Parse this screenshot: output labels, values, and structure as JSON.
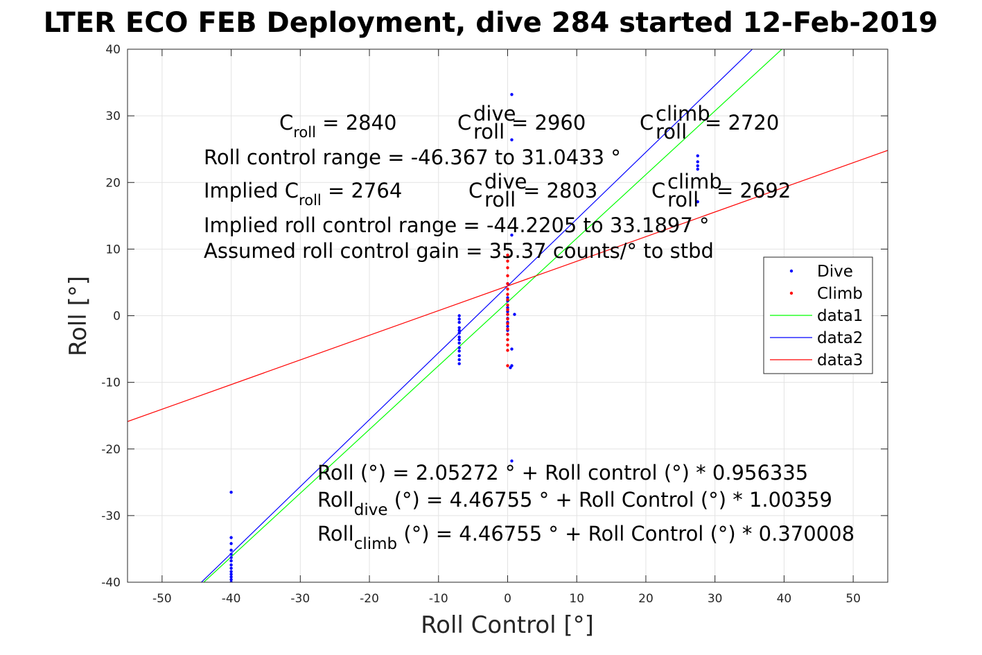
{
  "chart_data": {
    "type": "scatter",
    "title": "LTER ECO FEB Deployment, dive 284 started 12-Feb-2019",
    "xlabel": "Roll Control [°]",
    "ylabel": "Roll [°]",
    "xlim": [
      -55,
      55
    ],
    "ylim": [
      -40,
      40
    ],
    "xticks": [
      -50,
      -40,
      -30,
      -20,
      -10,
      0,
      10,
      20,
      30,
      40,
      50
    ],
    "yticks": [
      -40,
      -30,
      -20,
      -10,
      0,
      10,
      20,
      30,
      40
    ],
    "grid": true,
    "legend_position": "right",
    "series": [
      {
        "name": "Dive",
        "kind": "points",
        "color": "#0000ff",
        "points": [
          [
            -40,
            -26.5
          ],
          [
            -40,
            -33.3
          ],
          [
            -40,
            -34.2
          ],
          [
            -40,
            -35.2
          ],
          [
            -40,
            -35.8
          ],
          [
            -40,
            -36.3
          ],
          [
            -40,
            -36.8
          ],
          [
            -40,
            -37.4
          ],
          [
            -40,
            -37.9
          ],
          [
            -40,
            -38.4
          ],
          [
            -40,
            -38.8
          ],
          [
            -40,
            -39.2
          ],
          [
            -40,
            -39.6
          ],
          [
            -40,
            -40
          ],
          [
            -7,
            0
          ],
          [
            -7,
            -0.5
          ],
          [
            -7,
            -1
          ],
          [
            -7,
            -1.8
          ],
          [
            -7,
            -2.2
          ],
          [
            -7,
            -2.6
          ],
          [
            -7,
            -3.2
          ],
          [
            -7,
            -3.6
          ],
          [
            -7,
            -4.1
          ],
          [
            -7,
            -4.8
          ],
          [
            -7,
            -5.3
          ],
          [
            -7,
            -6
          ],
          [
            -7,
            -6.6
          ],
          [
            -7,
            -7.2
          ],
          [
            0,
            4.8
          ],
          [
            0,
            2.7
          ],
          [
            0,
            2.2
          ],
          [
            0,
            1.2
          ],
          [
            0,
            0.6
          ],
          [
            0,
            0.2
          ],
          [
            0,
            -0.4
          ],
          [
            0,
            -1
          ],
          [
            0,
            -1.6
          ],
          [
            0,
            -2.2
          ],
          [
            0,
            -2.8
          ],
          [
            0.6,
            33.2
          ],
          [
            0.6,
            26.4
          ],
          [
            0.6,
            12.1
          ],
          [
            0.6,
            -5
          ],
          [
            0.4,
            -7.8
          ],
          [
            0.6,
            -7.5
          ],
          [
            0.6,
            -21.8
          ],
          [
            1,
            0.2
          ],
          [
            27.5,
            24
          ],
          [
            27.5,
            23.1
          ],
          [
            27.5,
            22.5
          ],
          [
            27.5,
            22
          ],
          [
            27.5,
            17.1
          ]
        ]
      },
      {
        "name": "Climb",
        "kind": "points",
        "color": "#ff0000",
        "points": [
          [
            0,
            9.1
          ],
          [
            0,
            8.2
          ],
          [
            0,
            7.2
          ],
          [
            0,
            6
          ],
          [
            0,
            4.8
          ],
          [
            0,
            4
          ],
          [
            0,
            3.2
          ],
          [
            0,
            2.4
          ],
          [
            0,
            1.6
          ],
          [
            0,
            0.9
          ],
          [
            0,
            0.2
          ],
          [
            0,
            -0.5
          ],
          [
            0,
            -1.2
          ],
          [
            0,
            -2
          ],
          [
            0,
            -2.8
          ],
          [
            0,
            -3.6
          ],
          [
            0,
            -4.4
          ],
          [
            0,
            -5.2
          ],
          [
            0,
            -7.5
          ]
        ]
      },
      {
        "name": "data1",
        "kind": "line",
        "color": "#00ff00",
        "intercept": 2.05272,
        "slope": 0.956335
      },
      {
        "name": "data2",
        "kind": "line",
        "color": "#0000ff",
        "intercept": 4.46755,
        "slope": 1.00359
      },
      {
        "name": "data3",
        "kind": "line",
        "color": "#ff0000",
        "intercept": 4.46755,
        "slope": 0.370008
      }
    ],
    "annotations": {
      "c_roll": {
        "base": "C",
        "sub": "roll",
        "value": " = 2840"
      },
      "c_roll_dive": {
        "base": "C",
        "sub": "roll",
        "sup": "dive",
        "value": " = 2960"
      },
      "c_roll_climb": {
        "base": "C",
        "sub": "roll",
        "sup": "climb",
        "value": " = 2720"
      },
      "range": "Roll control range = -46.367 to 31.0433 °",
      "implied_c": {
        "prefix": "Implied C",
        "sub": "roll",
        "value": " = 2764"
      },
      "implied_dive": {
        "base": "C",
        "sub": "roll",
        "sup": "dive",
        "value": " = 2803"
      },
      "implied_climb": {
        "base": "C",
        "sub": "roll",
        "sup": "climb",
        "value": " = 2692"
      },
      "implied_range": "Implied roll control range = -44.2205 to 33.1897 °",
      "gain": "Assumed roll control gain = 35.37 counts/° to stbd",
      "fit1": "Roll (°) = 2.05272 ° + Roll control (°) * 0.956335",
      "fit2": {
        "base": "Roll",
        "sub": "dive",
        "rest": " (°) = 4.46755 ° + Roll Control (°) * 1.00359"
      },
      "fit3": {
        "base": "Roll",
        "sub": "climb",
        "rest": " (°) = 4.46755 ° + Roll Control (°) * 0.370008"
      }
    }
  }
}
